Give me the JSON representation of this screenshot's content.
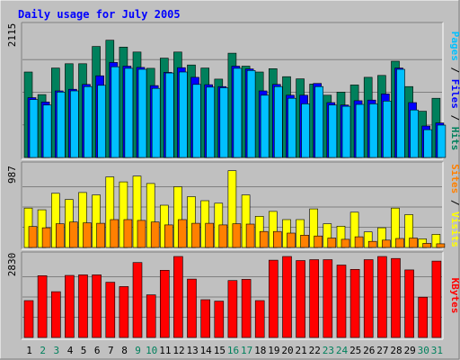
{
  "chart_data": {
    "type": "bar",
    "title": "Daily usage for July 2005",
    "categories": [
      "1",
      "2",
      "3",
      "4",
      "5",
      "6",
      "7",
      "8",
      "9",
      "10",
      "11",
      "12",
      "13",
      "14",
      "15",
      "16",
      "17",
      "18",
      "19",
      "20",
      "21",
      "22",
      "23",
      "24",
      "25",
      "26",
      "27",
      "28",
      "29",
      "30",
      "31"
    ],
    "weekend_days": [
      "2",
      "3",
      "9",
      "10",
      "16",
      "17",
      "23",
      "24",
      "30",
      "31"
    ],
    "panels": [
      {
        "ymax": 2115,
        "ymax_label": "2115",
        "ylabel_parts": [
          "Pages",
          "Files",
          "Hits"
        ],
        "ylabel_separator": " / ",
        "series": [
          {
            "name": "Hits",
            "color": "#00805c",
            "values": [
              1385,
              1020,
              1450,
              1520,
              1520,
              1800,
              1900,
              1790,
              1710,
              1445,
              1610,
              1710,
              1500,
              1450,
              1270,
              1690,
              1480,
              1385,
              1440,
              1310,
              1275,
              1190,
              1010,
              1060,
              1175,
              1300,
              1330,
              1560,
              1150,
              750,
              960
            ]
          },
          {
            "name": "Files",
            "color": "#0000ff",
            "values": [
              970,
              900,
              1080,
              1105,
              1185,
              1325,
              1540,
              1480,
              1460,
              1165,
              1380,
              1455,
              1300,
              1180,
              1150,
              1480,
              1435,
              1080,
              1185,
              1010,
              1010,
              1200,
              890,
              850,
              920,
              930,
              1030,
              1450,
              890,
              510,
              560
            ]
          },
          {
            "name": "Pages",
            "color": "#00c0ff",
            "values": [
              940,
              850,
              1060,
              1080,
              1150,
              1170,
              1470,
              1445,
              1430,
              1120,
              1370,
              1385,
              1185,
              1140,
              1130,
              1445,
              1410,
              1010,
              1150,
              960,
              870,
              1150,
              850,
              830,
              860,
              870,
              915,
              1430,
              770,
              450,
              525
            ]
          }
        ]
      },
      {
        "ymax": 987,
        "ymax_label": "987",
        "ylabel_parts": [
          "Sites",
          "Visits"
        ],
        "ylabel_separator": " / ",
        "series": [
          {
            "name": "Visits",
            "color": "#ffff00",
            "values": [
              480,
              460,
              660,
              585,
              670,
              640,
              860,
              800,
              870,
              780,
              515,
              740,
              620,
              570,
              540,
              935,
              640,
              380,
              440,
              340,
              340,
              470,
              290,
              260,
              430,
              190,
              240,
              480,
              400,
              105,
              160
            ]
          },
          {
            "name": "Sites",
            "color": "#ff8000",
            "values": [
              255,
              240,
              290,
              310,
              300,
              295,
              340,
              340,
              330,
              310,
              275,
              340,
              295,
              295,
              275,
              290,
              285,
              195,
              195,
              175,
              150,
              140,
              115,
              100,
              130,
              75,
              90,
              110,
              115,
              50,
              45
            ]
          }
        ]
      },
      {
        "ymax": 2830,
        "ymax_label": "2830",
        "ylabel_parts": [
          "KBytes"
        ],
        "ylabel_separator": "",
        "series": [
          {
            "name": "KBytes",
            "color": "#ff0000",
            "values": [
              1290,
              2160,
              1600,
              2170,
              2190,
              2190,
              1930,
              1780,
              2620,
              1490,
              2350,
              2890,
              2040,
              1320,
              1270,
              1990,
              2030,
              1290,
              2700,
              3020,
              2690,
              2720,
              2720,
              2530,
              2380,
              2720,
              3040,
              2760,
              2360,
              1410,
              2670
            ]
          }
        ]
      }
    ]
  },
  "colors": {
    "background": "#c0c0c0",
    "title": "#0000ff",
    "axis_text": "#000000",
    "weekend_text": "#00805c",
    "grid": "#808080",
    "border_light": "#ffffff",
    "border_dark": "#808080"
  }
}
